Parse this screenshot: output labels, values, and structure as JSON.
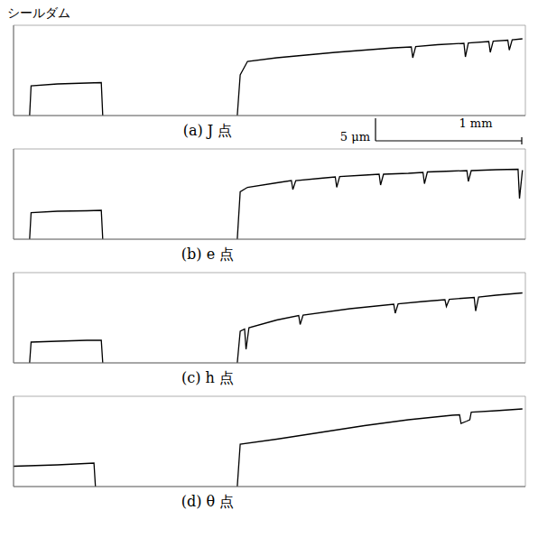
{
  "chart_data": [
    {
      "type": "line",
      "title": "(a) J 点",
      "annotations": [
        "シールダム"
      ],
      "scale_bar": {
        "x": {
          "value": 1,
          "label": "1 mm"
        },
        "y": {
          "value": 5,
          "label": "5 μm"
        }
      },
      "color": "#000000",
      "grid": true,
      "tick_labels": false,
      "xlim": [
        0,
        3.5
      ],
      "ylim": [
        0,
        20
      ],
      "xticks": [
        0,
        0.5,
        1,
        1.5,
        2,
        2.5,
        3,
        3.5
      ],
      "yticks": [
        0,
        5,
        10,
        15,
        20
      ],
      "x": [
        0.11,
        0.12,
        0.3,
        0.5,
        0.6,
        0.61,
        1.0,
        1.53,
        1.55,
        1.6,
        1.8,
        2.0,
        2.2,
        2.4,
        2.6,
        2.72,
        2.73,
        2.75,
        2.9,
        3.08,
        3.09,
        3.11,
        3.25,
        3.26,
        3.28,
        3.38,
        3.39,
        3.41,
        3.48
      ],
      "values": [
        0,
        6.6,
        7.0,
        7.2,
        7.3,
        0,
        null,
        0,
        9,
        12,
        12.8,
        13.4,
        14,
        14.5,
        15,
        15.2,
        12.8,
        15.3,
        15.7,
        16,
        13,
        16.1,
        16.4,
        14,
        16.5,
        16.7,
        14.5,
        16.8,
        17
      ]
    },
    {
      "type": "line",
      "title": "(b) e 点",
      "color": "#000000",
      "grid": true,
      "tick_labels": false,
      "xlim": [
        0,
        3.5
      ],
      "ylim": [
        0,
        20
      ],
      "xticks": [
        0,
        0.5,
        1,
        1.5,
        2,
        2.5,
        3,
        3.5
      ],
      "yticks": [
        0,
        5,
        10,
        15,
        20
      ],
      "x": [
        0.11,
        0.12,
        0.3,
        0.5,
        0.6,
        0.61,
        1.0,
        1.53,
        1.55,
        1.6,
        1.8,
        1.9,
        1.91,
        1.93,
        2.1,
        2.2,
        2.21,
        2.23,
        2.4,
        2.5,
        2.51,
        2.53,
        2.7,
        2.8,
        2.81,
        2.83,
        3.0,
        3.1,
        3.11,
        3.13,
        3.3,
        3.45,
        3.46,
        3.48
      ],
      "values": [
        0,
        5.9,
        6.2,
        6.3,
        6.4,
        0,
        null,
        0,
        10.5,
        11.5,
        12.5,
        13,
        11,
        13,
        13.5,
        13.8,
        11.5,
        13.9,
        14.2,
        14.4,
        12,
        14.4,
        14.6,
        14.8,
        12.3,
        14.9,
        15.1,
        15.2,
        12.8,
        15.2,
        15.4,
        15.5,
        9,
        15.3
      ]
    },
    {
      "type": "line",
      "title": "(c) h 点",
      "color": "#000000",
      "grid": true,
      "tick_labels": false,
      "xlim": [
        0,
        3.5
      ],
      "ylim": [
        0,
        20
      ],
      "xticks": [
        0,
        0.5,
        1,
        1.5,
        2,
        2.5,
        3,
        3.5
      ],
      "yticks": [
        0,
        5,
        10,
        15,
        20
      ],
      "x": [
        0.11,
        0.12,
        0.3,
        0.5,
        0.6,
        0.61,
        1.0,
        1.53,
        1.55,
        1.58,
        1.59,
        1.61,
        1.8,
        1.95,
        1.96,
        1.98,
        2.3,
        2.6,
        2.61,
        2.63,
        2.8,
        2.95,
        2.96,
        2.98,
        3.15,
        3.16,
        3.18,
        3.3,
        3.48
      ],
      "values": [
        0,
        4.6,
        4.8,
        5.0,
        5.0,
        0,
        null,
        0,
        7,
        7.5,
        3,
        7.8,
        9.5,
        10.5,
        8.5,
        10.6,
        12,
        13,
        11,
        13.1,
        13.6,
        14,
        12.5,
        14.1,
        14.5,
        11.5,
        14.6,
        15,
        15.5
      ]
    },
    {
      "type": "line",
      "title": "(d) θ 点",
      "color": "#000000",
      "grid": true,
      "tick_labels": false,
      "xlim": [
        0,
        3.5
      ],
      "ylim": [
        0,
        20
      ],
      "xticks": [
        0,
        0.5,
        1,
        1.5,
        2,
        2.5,
        3,
        3.5
      ],
      "yticks": [
        0,
        5,
        10,
        15,
        20
      ],
      "x": [
        0,
        0.3,
        0.55,
        0.56,
        1.0,
        1.53,
        1.55,
        1.8,
        2.1,
        2.4,
        2.7,
        3.0,
        3.05,
        3.06,
        3.1,
        3.12,
        3.13,
        3.3,
        3.48
      ],
      "values": [
        4.5,
        4.8,
        5.2,
        0,
        null,
        0,
        9.4,
        10.5,
        12,
        13.5,
        14.8,
        15.8,
        15.9,
        14,
        14.5,
        14.8,
        16.5,
        16.8,
        17.2
      ]
    }
  ]
}
